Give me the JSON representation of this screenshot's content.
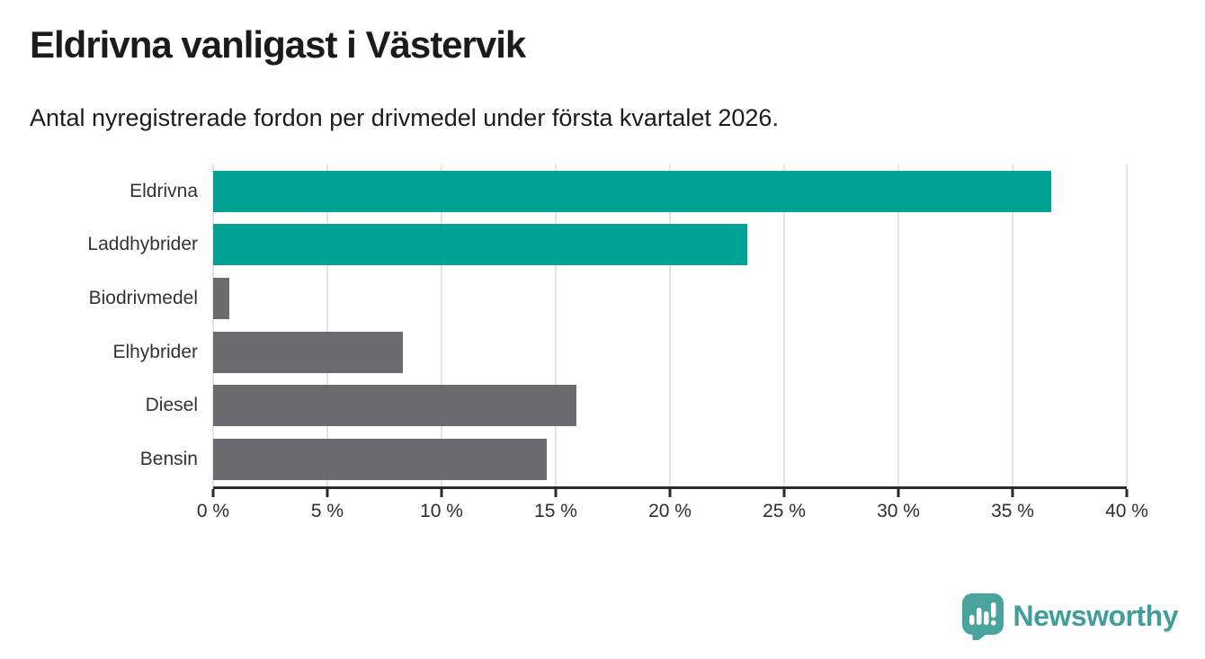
{
  "header": {
    "title": "Eldrivna vanligast i Västervik",
    "subtitle": "Antal nyregistrerade fordon per drivmedel under första kvartalet 2026."
  },
  "chart_data": {
    "type": "bar",
    "orientation": "horizontal",
    "title": "Eldrivna vanligast i Västervik",
    "subtitle": "Antal nyregistrerade fordon per drivmedel under första kvartalet 2026.",
    "xlabel": "",
    "ylabel": "",
    "unit": "%",
    "categories": [
      "Eldrivna",
      "Laddhybrider",
      "Biodrivmedel",
      "Elhybrider",
      "Diesel",
      "Bensin"
    ],
    "values": [
      36.7,
      23.4,
      0.7,
      8.3,
      15.9,
      14.6
    ],
    "bar_colors": [
      "#00a295",
      "#00a295",
      "#6b6b70",
      "#6b6b70",
      "#6b6b70",
      "#6b6b70"
    ],
    "highlighted_categories": [
      "Eldrivna",
      "Laddhybrider"
    ],
    "xlim": [
      0,
      40
    ],
    "x_ticks": [
      0,
      5,
      10,
      15,
      20,
      25,
      30,
      35,
      40
    ],
    "x_tick_labels": [
      "0 %",
      "5 %",
      "10 %",
      "15 %",
      "20 %",
      "25 %",
      "30 %",
      "35 %",
      "40 %"
    ],
    "grid": true,
    "legend": false
  },
  "colors": {
    "highlight_bar": "#00a295",
    "default_bar": "#6b6b70",
    "gridline": "#e4e4e4",
    "axis": "#2b2b2b",
    "title_text": "#1b1b1b",
    "label_text": "#333333",
    "logo_teal": "#3f9e98",
    "logo_icon_teal": "#4aa39c"
  },
  "footer": {
    "brand": "Newsworthy"
  }
}
